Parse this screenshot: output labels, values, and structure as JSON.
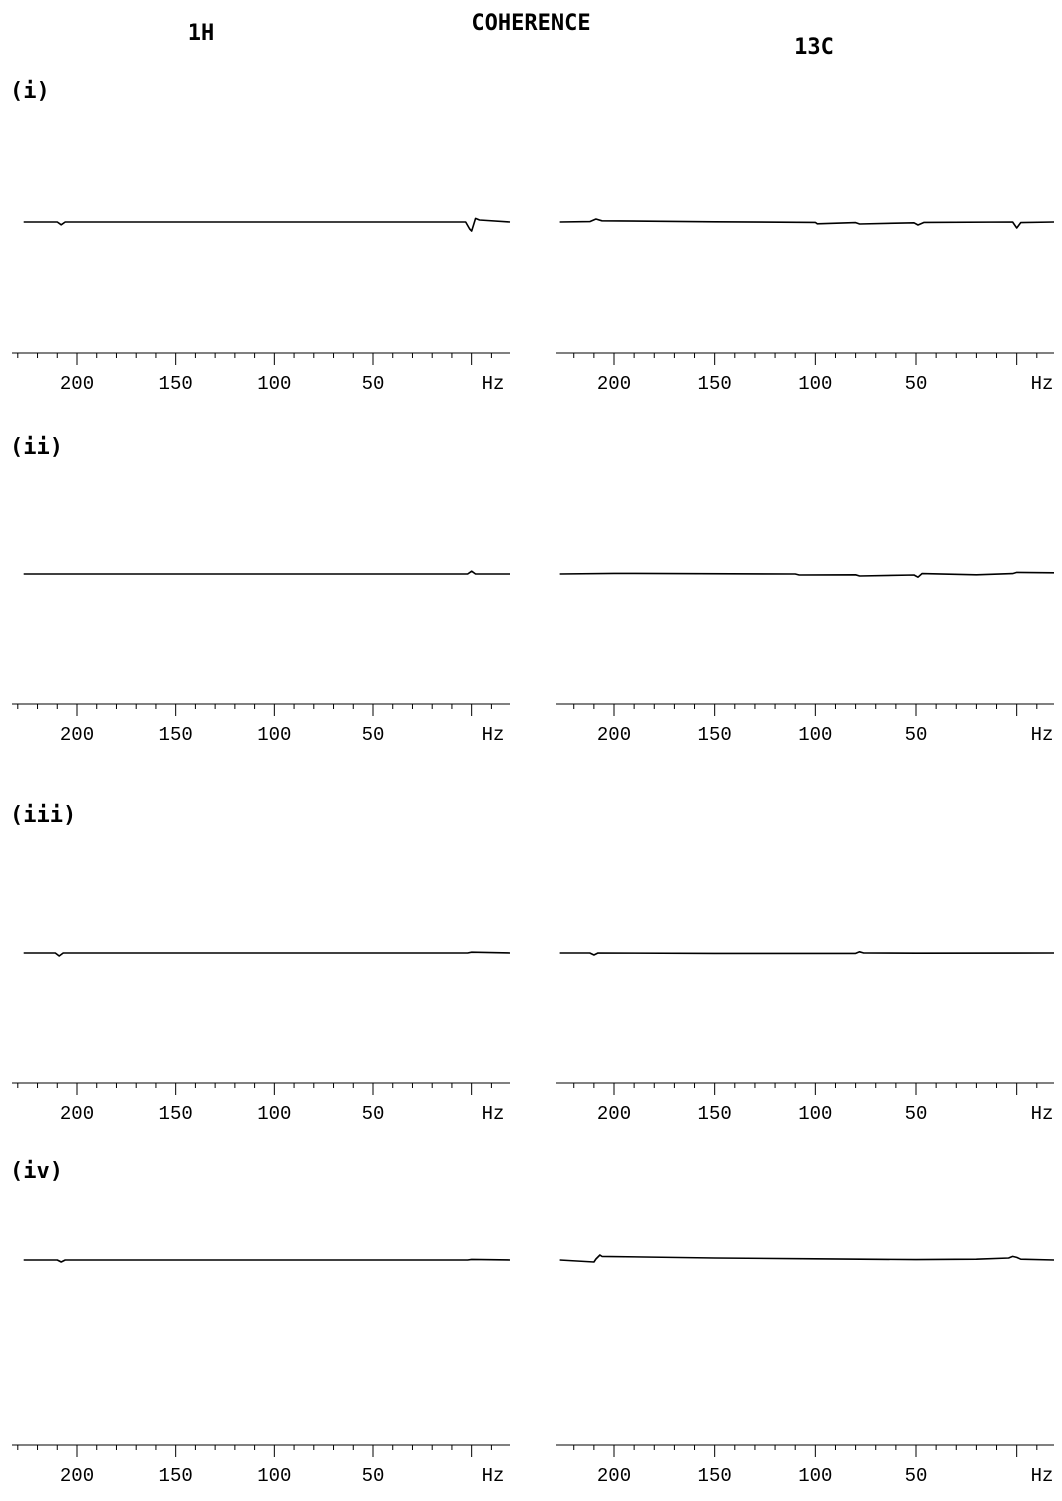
{
  "title": "COHERENCE",
  "column_headers": [
    "1H",
    "13C"
  ],
  "row_labels": [
    "(i)",
    "(ii)",
    "(iii)",
    "(iv)"
  ],
  "chart_data": {
    "type": "line",
    "title": "COHERENCE",
    "x_unit": "Hz",
    "x_ticks": [
      200,
      150,
      100,
      50
    ],
    "xlim": [
      227,
      -20
    ],
    "x_reversed": true,
    "panels": [
      {
        "row": "(i)",
        "nucleus": "1H",
        "x": [
          227,
          210,
          208,
          206,
          150,
          50,
          3,
          1,
          0,
          -2,
          -4,
          -20
        ],
        "y": [
          0,
          0,
          -1.4,
          0,
          0,
          0,
          0,
          -3.5,
          -4.5,
          1.8,
          1,
          0
        ]
      },
      {
        "row": "(i)",
        "nucleus": "13C",
        "x": [
          227,
          212,
          209,
          206,
          150,
          100,
          99,
          80,
          78,
          51,
          49,
          46,
          2,
          0,
          -2,
          -20
        ],
        "y": [
          0,
          0.2,
          1.5,
          0.6,
          0.1,
          -0.2,
          -0.9,
          -0.3,
          -1,
          -0.4,
          -1.5,
          -0.2,
          0,
          -3,
          -0.3,
          0
        ]
      },
      {
        "row": "(ii)",
        "nucleus": "1H",
        "x": [
          227,
          100,
          2,
          0,
          -2,
          -20
        ],
        "y": [
          0,
          0,
          0,
          1.4,
          0,
          0
        ]
      },
      {
        "row": "(ii)",
        "nucleus": "13C",
        "x": [
          227,
          200,
          110,
          108,
          80,
          78,
          51,
          49,
          47,
          20,
          2,
          0,
          -20
        ],
        "y": [
          0,
          0.3,
          0,
          -0.5,
          -0.4,
          -1,
          -0.5,
          -1.6,
          0.2,
          -0.4,
          0.2,
          0.8,
          0.6
        ]
      },
      {
        "row": "(iii)",
        "nucleus": "1H",
        "x": [
          227,
          211,
          209,
          207,
          150,
          50,
          2,
          0,
          -20
        ],
        "y": [
          0,
          0,
          -1.5,
          0,
          0,
          0,
          0,
          0.4,
          0
        ]
      },
      {
        "row": "(iii)",
        "nucleus": "13C",
        "x": [
          227,
          212,
          210,
          208,
          150,
          80,
          78,
          76,
          50,
          -20
        ],
        "y": [
          0,
          0,
          -1,
          0,
          -0.2,
          -0.2,
          0.6,
          0,
          -0.1,
          0
        ]
      },
      {
        "row": "(iv)",
        "nucleus": "1H",
        "x": [
          227,
          210,
          208,
          206,
          100,
          2,
          0,
          -20
        ],
        "y": [
          0,
          0,
          -1,
          0,
          0,
          0,
          0.3,
          0
        ]
      },
      {
        "row": "(iv)",
        "nucleus": "13C",
        "x": [
          227,
          210,
          209,
          207,
          206,
          150,
          100,
          50,
          20,
          4,
          2,
          0,
          -2,
          -20
        ],
        "y": [
          0,
          -1,
          0.5,
          2.5,
          1.8,
          1,
          0.6,
          0.2,
          0.4,
          1,
          1.8,
          1.3,
          0.4,
          0
        ]
      }
    ]
  }
}
